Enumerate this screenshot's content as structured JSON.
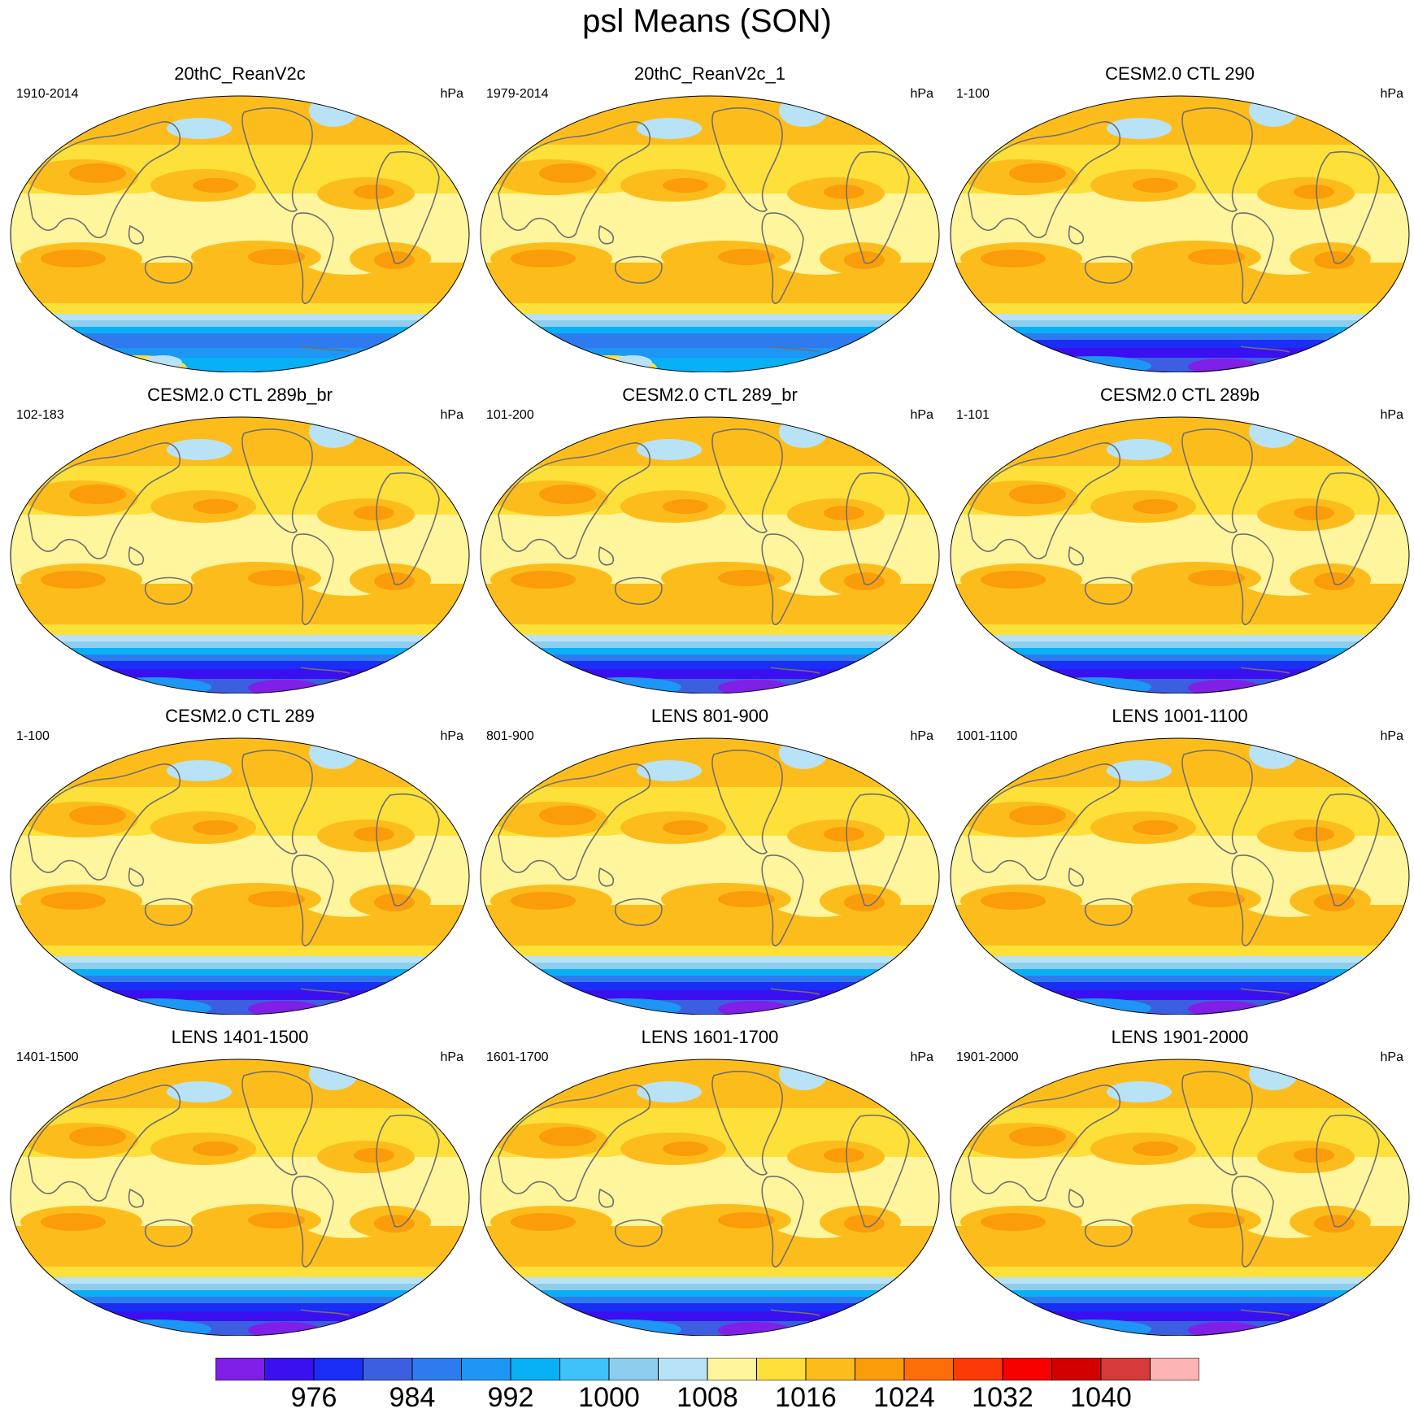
{
  "title": "psl Means (SON)",
  "units": "hPa",
  "panels": [
    {
      "title": "20thC_ReanV2c",
      "period": "1910-2014",
      "units": "hPa",
      "style": "rean"
    },
    {
      "title": "20thC_ReanV2c_1",
      "period": "1979-2014",
      "units": "hPa",
      "style": "rean"
    },
    {
      "title": "CESM2.0 CTL 290",
      "period": "1-100",
      "units": "hPa",
      "style": "cesm"
    },
    {
      "title": "CESM2.0 CTL 289b_br",
      "period": "102-183",
      "units": "hPa",
      "style": "cesm"
    },
    {
      "title": "CESM2.0 CTL 289_br",
      "period": "101-200",
      "units": "hPa",
      "style": "cesm"
    },
    {
      "title": "CESM2.0 CTL 289b",
      "period": "1-101",
      "units": "hPa",
      "style": "cesm"
    },
    {
      "title": "CESM2.0 CTL 289",
      "period": "1-100",
      "units": "hPa",
      "style": "cesm"
    },
    {
      "title": "LENS 801-900",
      "period": "801-900",
      "units": "hPa",
      "style": "lens"
    },
    {
      "title": "LENS 1001-1100",
      "period": "1001-1100",
      "units": "hPa",
      "style": "lens"
    },
    {
      "title": "LENS 1401-1500",
      "period": "1401-1500",
      "units": "hPa",
      "style": "lens"
    },
    {
      "title": "LENS 1601-1700",
      "period": "1601-1700",
      "units": "hPa",
      "style": "lens"
    },
    {
      "title": "LENS 1901-2000",
      "period": "1901-2000",
      "units": "hPa",
      "style": "lens"
    }
  ],
  "colorbar": {
    "colors": [
      "#7f1fe8",
      "#3a10f0",
      "#1a2ef5",
      "#3b5fe0",
      "#2e7bf0",
      "#1e96f5",
      "#08b0f5",
      "#3fc2f7",
      "#8ecdee",
      "#b8e2f6",
      "#fff59c",
      "#fde03a",
      "#fcbd1c",
      "#fb9c0a",
      "#fb6e08",
      "#fb3a08",
      "#f80000",
      "#d20000",
      "#d73a3a",
      "#fcb4b4"
    ],
    "labels": [
      "976",
      "984",
      "992",
      "1000",
      "1008",
      "1016",
      "1024",
      "1032",
      "1040"
    ]
  }
}
